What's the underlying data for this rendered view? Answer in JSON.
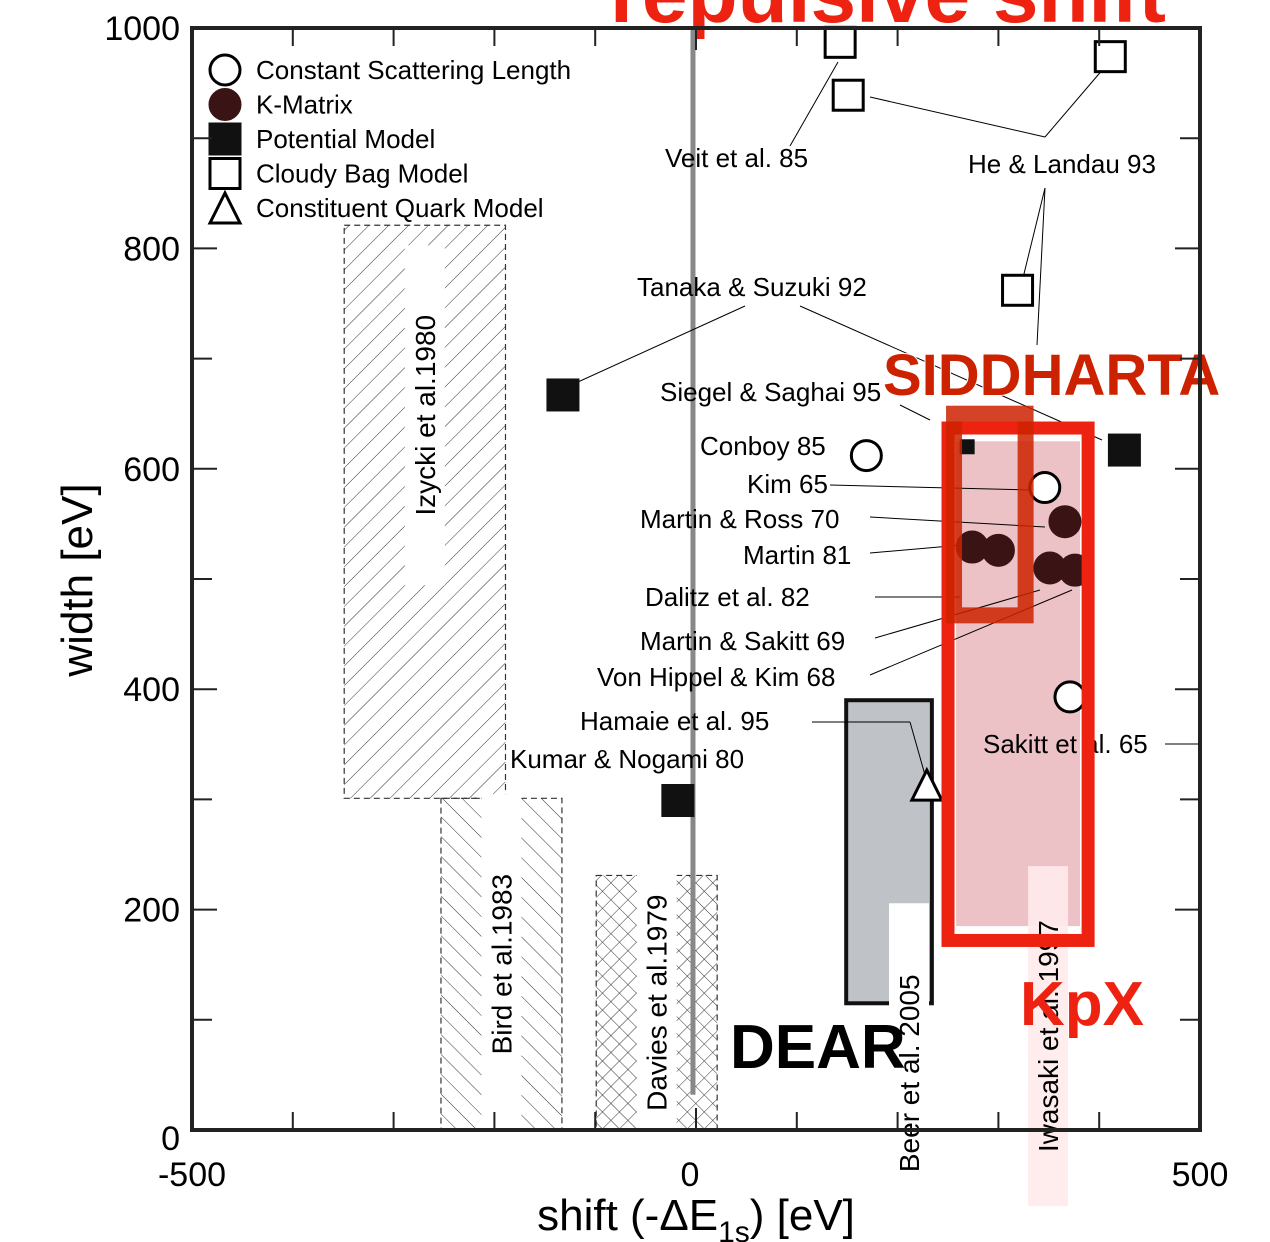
{
  "chart_data": {
    "type": "scatter",
    "title": "repulsive shift",
    "xlabel": [
      "shift (-ΔE",
      "1s",
      ") [eV]"
    ],
    "ylabel": "width [eV]",
    "xlim": [
      -500,
      500
    ],
    "ylim": [
      0,
      1000
    ],
    "xticks": [
      -500,
      0,
      500
    ],
    "yticks": [
      0,
      200,
      400,
      600,
      800,
      1000
    ],
    "series": [
      {
        "name": "Constant Scattering Length",
        "marker": "open-circle",
        "color": "#000000",
        "x": [
          169,
          346,
          371
        ],
        "values": [
          612,
          583,
          393
        ]
      },
      {
        "name": "K-Matrix",
        "marker": "filled-circle",
        "color": "#3a1414",
        "x": [
          274,
          300,
          366,
          351,
          376
        ],
        "values": [
          529,
          526,
          552,
          510,
          508
        ]
      },
      {
        "name": "Potential Model",
        "marker": "filled-square",
        "color": "#111111",
        "x": [
          -132,
          -18,
          425,
          269
        ],
        "values": [
          667,
          299,
          617,
          620
        ]
      },
      {
        "name": "Cloudy Bag Model",
        "marker": "open-square",
        "color": "#000000",
        "x": [
          143,
          151,
          411,
          319
        ],
        "values": [
          987,
          939,
          974,
          762
        ]
      },
      {
        "name": "Constituent Quark Model",
        "marker": "open-triangle",
        "color": "#000000",
        "x": [
          229
        ],
        "values": [
          313
        ]
      }
    ],
    "regions": [
      {
        "label": "Izycki et al.1980",
        "style": "hatch-a",
        "x": [
          -349,
          -189
        ],
        "y": [
          301,
          821
        ]
      },
      {
        "label": "Bird et al.1983",
        "style": "hatch-b",
        "x": [
          -253,
          -133
        ],
        "y": [
          0,
          301
        ]
      },
      {
        "label": "Davies et al.1979",
        "style": "cross",
        "x": [
          -99,
          21
        ],
        "y": [
          0,
          231
        ]
      },
      {
        "label": "Beer et al. 2005",
        "style": "grey",
        "x": [
          149,
          234
        ],
        "y": [
          115,
          390
        ]
      },
      {
        "label": "Iwasaki et al. 1997",
        "style": "pink",
        "x": [
          258,
          381
        ],
        "y": [
          185,
          625
        ]
      }
    ],
    "boxes": [
      {
        "label": "KpX",
        "color": "#ee2211",
        "x": [
          250,
          389
        ],
        "y": [
          172,
          637
        ]
      },
      {
        "label": "SIDDHARTA",
        "color": "#cc2200",
        "x": [
          256,
          327
        ],
        "y": [
          467,
          650
        ]
      }
    ],
    "overlay": [
      "DEAR"
    ],
    "annotations": [
      "Veit et al. 85",
      "He & Landau 93",
      "Tanaka & Suzuki 92",
      "Siegel & Saghai 95",
      "Conboy 85",
      "Kim 65",
      "Martin & Ross 70",
      "Martin 81",
      "Dalitz et al. 82",
      "Martin & Sakitt 69",
      "Von Hippel & Kim 68",
      "Hamaie et al. 95",
      "Kumar & Nogami 80",
      "Sakitt et al. 65"
    ]
  }
}
